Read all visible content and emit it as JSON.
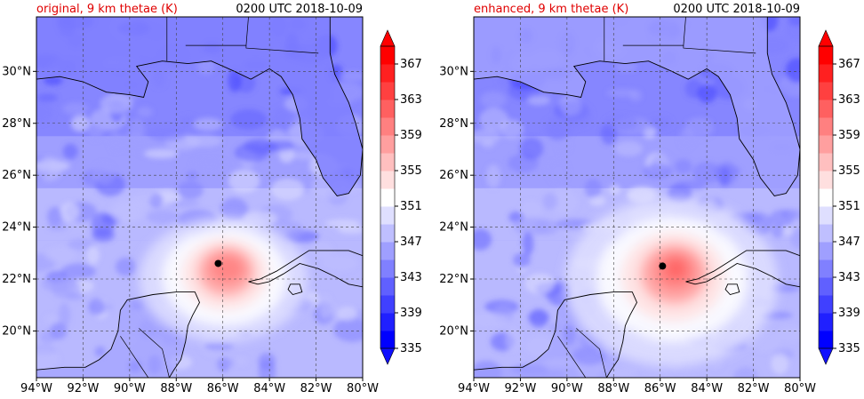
{
  "panels": [
    {
      "title_left": "original, 9 km thetae (K)",
      "title_right": "0200 UTC 2018-10-09",
      "storm_center": {
        "lon": -86.2,
        "lat": 22.6
      },
      "variant": "original"
    },
    {
      "title_left": "enhanced, 9 km thetae (K)",
      "title_right": "0200 UTC 2018-10-09",
      "storm_center": {
        "lon": -85.9,
        "lat": 22.5
      },
      "variant": "enhanced"
    }
  ],
  "x_ticks": [
    "94°W",
    "92°W",
    "90°W",
    "88°W",
    "86°W",
    "84°W",
    "82°W",
    "80°W"
  ],
  "y_ticks": [
    "20°N",
    "22°N",
    "24°N",
    "26°N",
    "28°N",
    "30°N"
  ],
  "colorbar": {
    "labels": [
      "335",
      "339",
      "343",
      "347",
      "351",
      "355",
      "359",
      "363",
      "367"
    ],
    "levels_min": 335,
    "levels_max": 369,
    "step": 2
  },
  "colors": {
    "title_left": "#e00000",
    "title_right": "#000000",
    "grid": "#444444",
    "coast": "#000000"
  },
  "map_extent": {
    "lon_min": -94,
    "lon_max": -80,
    "lat_min": 18.2,
    "lat_max": 32.1
  }
}
